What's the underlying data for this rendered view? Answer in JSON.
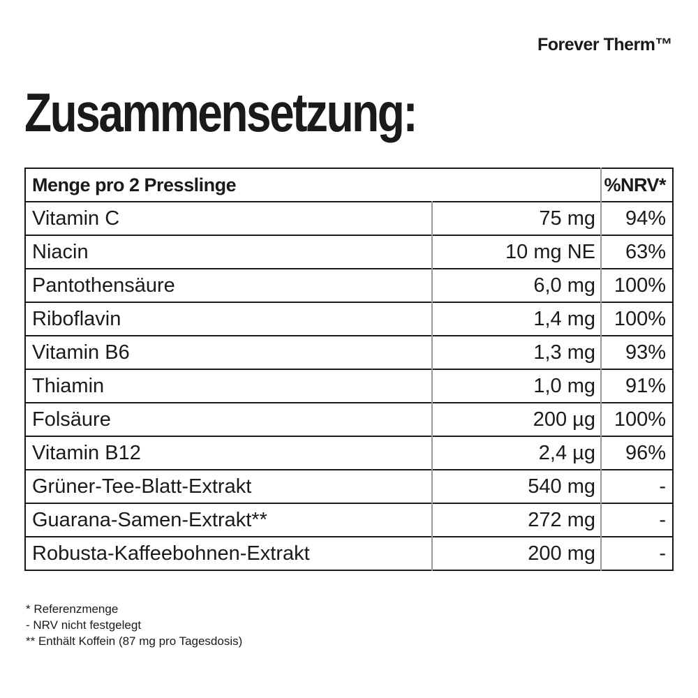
{
  "brand": "Forever Therm™",
  "title": "Zusammensetzung:",
  "table": {
    "header": {
      "left": "Menge pro 2 Presslinge",
      "right": "%NRV*"
    },
    "rows": [
      {
        "name": "Vitamin C",
        "amount": "75 mg",
        "nrv": "94%"
      },
      {
        "name": "Niacin",
        "amount": "10 mg NE",
        "nrv": "63%"
      },
      {
        "name": "Pantothensäure",
        "amount": "6,0 mg",
        "nrv": "100%"
      },
      {
        "name": "Riboflavin",
        "amount": "1,4 mg",
        "nrv": "100%"
      },
      {
        "name": "Vitamin B6",
        "amount": "1,3 mg",
        "nrv": "93%"
      },
      {
        "name": "Thiamin",
        "amount": "1,0 mg",
        "nrv": "91%"
      },
      {
        "name": "Folsäure",
        "amount": "200 µg",
        "nrv": "100%"
      },
      {
        "name": "Vitamin B12",
        "amount": "2,4 µg",
        "nrv": "96%"
      },
      {
        "name": "Grüner-Tee-Blatt-Extrakt",
        "amount": "540 mg",
        "nrv": "-"
      },
      {
        "name": "Guarana-Samen-Extrakt**",
        "amount": "272 mg",
        "nrv": "-"
      },
      {
        "name": "Robusta-Kaffeebohnen-Extrakt",
        "amount": "200 mg",
        "nrv": "-"
      }
    ]
  },
  "footnotes": [
    "* Referenzmenge",
    "- NRV nicht festgelegt",
    "** Enthält Koffein (87 mg pro Tagesdosis)"
  ],
  "colors": {
    "background": "#ffffff",
    "text": "#1a1a1a",
    "border_dark": "#1a1a1a",
    "divider_gray": "#9a9a9a"
  }
}
